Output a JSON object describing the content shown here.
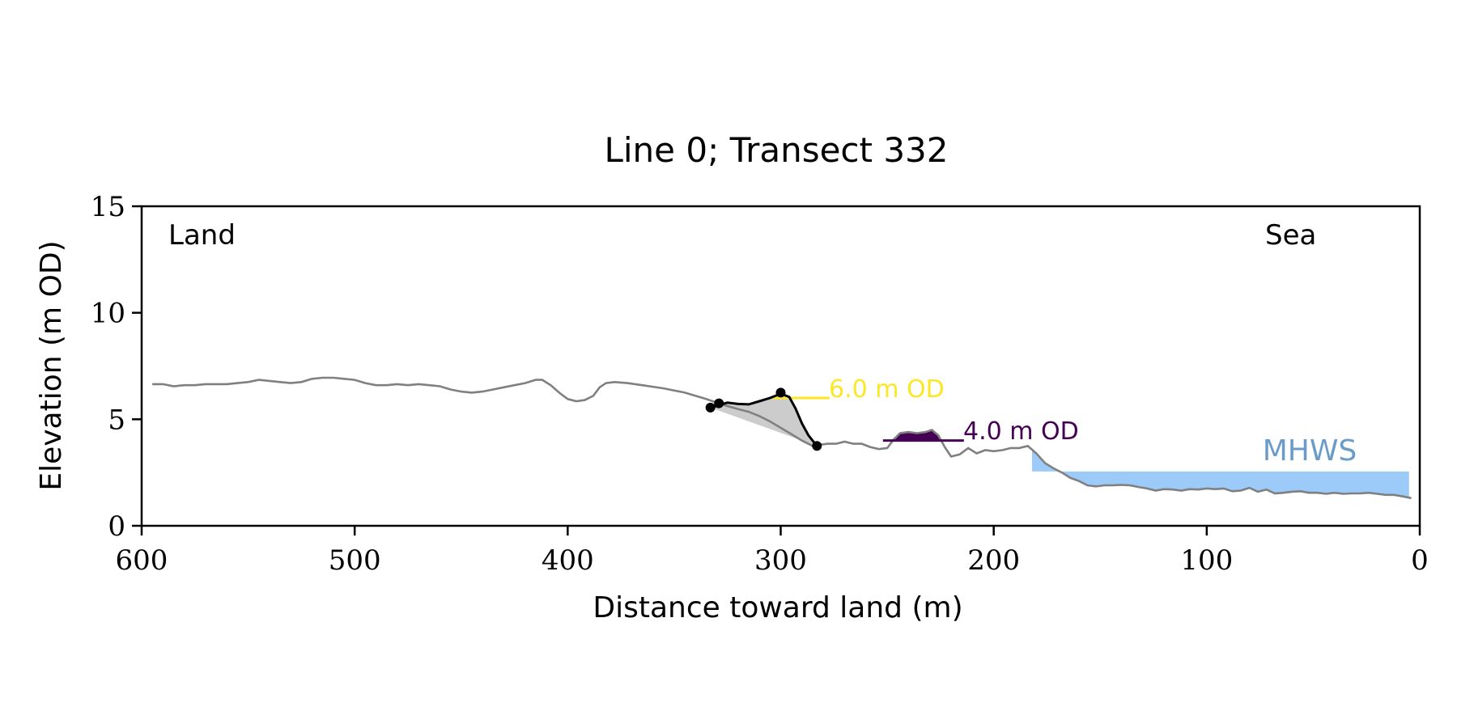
{
  "chart_data": {
    "type": "line",
    "title": "Line 0; Transect 332",
    "xlabel": "Distance toward land (m)",
    "ylabel": "Elevation (m OD)",
    "xlim": [
      600,
      0
    ],
    "ylim": [
      0,
      15
    ],
    "x_ticks": [
      "600",
      "500",
      "400",
      "300",
      "200",
      "100",
      "0"
    ],
    "y_ticks": [
      "0",
      "5",
      "10",
      "15"
    ],
    "grid": false,
    "annotations": {
      "land": "Land",
      "sea": "Sea",
      "mhws": "MHWS",
      "level_6": "6.0 m OD",
      "level_4": "4.0 m OD"
    },
    "colors": {
      "profile": "#808080",
      "dune": "#000000",
      "level_6": "#FDE725",
      "level_4": "#440154",
      "mhws_fill": "#9CCBFA",
      "mhws_text": "#6A9BC9",
      "toe_fill": "#CCCCCC"
    },
    "profile": [
      [
        595,
        6.65
      ],
      [
        590,
        6.65
      ],
      [
        585,
        6.55
      ],
      [
        580,
        6.6
      ],
      [
        575,
        6.6
      ],
      [
        570,
        6.65
      ],
      [
        565,
        6.65
      ],
      [
        560,
        6.65
      ],
      [
        555,
        6.7
      ],
      [
        550,
        6.75
      ],
      [
        545,
        6.85
      ],
      [
        540,
        6.8
      ],
      [
        535,
        6.75
      ],
      [
        530,
        6.7
      ],
      [
        525,
        6.75
      ],
      [
        520,
        6.9
      ],
      [
        515,
        6.95
      ],
      [
        510,
        6.95
      ],
      [
        505,
        6.9
      ],
      [
        500,
        6.85
      ],
      [
        495,
        6.7
      ],
      [
        490,
        6.6
      ],
      [
        485,
        6.6
      ],
      [
        480,
        6.65
      ],
      [
        475,
        6.6
      ],
      [
        470,
        6.65
      ],
      [
        465,
        6.6
      ],
      [
        460,
        6.55
      ],
      [
        455,
        6.4
      ],
      [
        450,
        6.3
      ],
      [
        445,
        6.25
      ],
      [
        440,
        6.3
      ],
      [
        435,
        6.4
      ],
      [
        430,
        6.5
      ],
      [
        425,
        6.6
      ],
      [
        420,
        6.7
      ],
      [
        415,
        6.85
      ],
      [
        412,
        6.85
      ],
      [
        408,
        6.6
      ],
      [
        404,
        6.25
      ],
      [
        400,
        5.95
      ],
      [
        396,
        5.85
      ],
      [
        392,
        5.9
      ],
      [
        388,
        6.1
      ],
      [
        385,
        6.5
      ],
      [
        382,
        6.7
      ],
      [
        378,
        6.75
      ],
      [
        372,
        6.7
      ],
      [
        365,
        6.6
      ],
      [
        355,
        6.45
      ],
      [
        345,
        6.25
      ],
      [
        335,
        5.95
      ],
      [
        330,
        5.78
      ],
      [
        325,
        5.62
      ],
      [
        320,
        5.48
      ],
      [
        315,
        5.35
      ],
      [
        310,
        5.15
      ],
      [
        305,
        4.9
      ],
      [
        300,
        4.6
      ],
      [
        295,
        4.3
      ],
      [
        290,
        4.0
      ],
      [
        285,
        3.75
      ],
      [
        282,
        3.8
      ],
      [
        278,
        3.85
      ],
      [
        274,
        3.85
      ],
      [
        270,
        3.95
      ],
      [
        266,
        3.85
      ],
      [
        262,
        3.85
      ],
      [
        258,
        3.7
      ],
      [
        254,
        3.6
      ],
      [
        250,
        3.65
      ],
      [
        247,
        4.05
      ],
      [
        244,
        4.35
      ],
      [
        240,
        4.4
      ],
      [
        236,
        4.35
      ],
      [
        232,
        4.4
      ],
      [
        229,
        4.5
      ],
      [
        226,
        4.25
      ],
      [
        223,
        3.7
      ],
      [
        220,
        3.25
      ],
      [
        216,
        3.35
      ],
      [
        212,
        3.65
      ],
      [
        208,
        3.4
      ],
      [
        204,
        3.55
      ],
      [
        200,
        3.5
      ],
      [
        196,
        3.55
      ],
      [
        192,
        3.65
      ],
      [
        188,
        3.65
      ],
      [
        184,
        3.75
      ],
      [
        180,
        3.4
      ],
      [
        176,
        2.95
      ],
      [
        172,
        2.7
      ],
      [
        168,
        2.5
      ],
      [
        164,
        2.25
      ],
      [
        160,
        2.1
      ],
      [
        156,
        1.9
      ],
      [
        152,
        1.85
      ],
      [
        148,
        1.9
      ],
      [
        144,
        1.9
      ],
      [
        140,
        1.92
      ],
      [
        136,
        1.9
      ],
      [
        132,
        1.82
      ],
      [
        128,
        1.75
      ],
      [
        124,
        1.65
      ],
      [
        120,
        1.72
      ],
      [
        116,
        1.7
      ],
      [
        112,
        1.65
      ],
      [
        108,
        1.72
      ],
      [
        104,
        1.7
      ],
      [
        100,
        1.75
      ],
      [
        96,
        1.72
      ],
      [
        92,
        1.75
      ],
      [
        88,
        1.62
      ],
      [
        84,
        1.65
      ],
      [
        80,
        1.78
      ],
      [
        76,
        1.6
      ],
      [
        72,
        1.7
      ],
      [
        68,
        1.52
      ],
      [
        64,
        1.55
      ],
      [
        60,
        1.6
      ],
      [
        56,
        1.62
      ],
      [
        52,
        1.55
      ],
      [
        48,
        1.55
      ],
      [
        44,
        1.5
      ],
      [
        40,
        1.55
      ],
      [
        36,
        1.5
      ],
      [
        32,
        1.52
      ],
      [
        28,
        1.52
      ],
      [
        24,
        1.55
      ],
      [
        20,
        1.5
      ],
      [
        16,
        1.45
      ],
      [
        12,
        1.45
      ],
      [
        8,
        1.38
      ],
      [
        4,
        1.3
      ]
    ],
    "dune_crest": [
      [
        333,
        5.55
      ],
      [
        330,
        5.62
      ],
      [
        328,
        5.7
      ],
      [
        325,
        5.78
      ],
      [
        320,
        5.72
      ],
      [
        315,
        5.7
      ],
      [
        310,
        5.85
      ],
      [
        305,
        6.0
      ],
      [
        300,
        6.2
      ],
      [
        296,
        6.05
      ],
      [
        293,
        5.5
      ],
      [
        290,
        4.8
      ],
      [
        287,
        4.25
      ],
      [
        283,
        3.75
      ]
    ],
    "key_points": [
      [
        333,
        5.55
      ],
      [
        329,
        5.75
      ],
      [
        300,
        6.25
      ],
      [
        283,
        3.75
      ]
    ],
    "level_6": {
      "elevation": 6.0,
      "x_start": 305,
      "x_end": 277
    },
    "level_4": {
      "elevation": 4.0,
      "x_start": 252,
      "x_end": 214
    },
    "mhws": {
      "elevation": 2.55,
      "x_start": 182,
      "x_end": 5
    }
  }
}
